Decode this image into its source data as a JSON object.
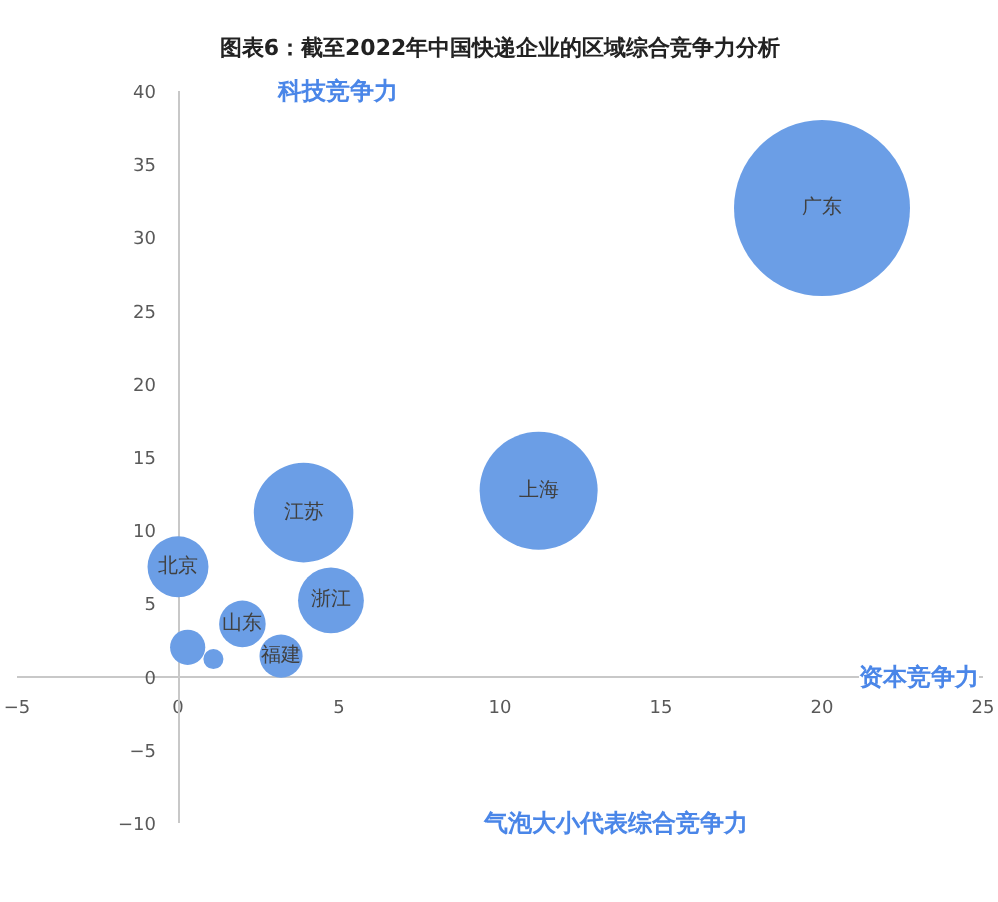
{
  "chart_data": {
    "type": "bubble",
    "title": "图表6：截至2022年中国快递企业的区域综合竞争力分析",
    "xlabel": "资本竞争力",
    "ylabel": "科技竞争力",
    "x": [
      20,
      11.2,
      3.9,
      0,
      4.75,
      2,
      3.2,
      0.3,
      1.1
    ],
    "series": [
      {
        "color": "#6b9ee6",
        "values": [
          32,
          12.7,
          11.2,
          7.5,
          5.2,
          3.6,
          1.4,
          2,
          1.2
        ],
        "sizes": [
          1,
          0.45,
          0.32,
          0.12,
          0.14,
          0.07,
          0.06,
          0.04,
          0.013
        ]
      }
    ],
    "xlim": [
      -5,
      25
    ],
    "ylim": [
      -10,
      40
    ],
    "xticks": [
      -5,
      0,
      5,
      10,
      15,
      20,
      25
    ],
    "yticks": [
      -10,
      -5,
      0,
      5,
      10,
      15,
      20,
      25,
      30,
      35,
      40
    ],
    "annotations": [
      {
        "text": "广东",
        "x": 20,
        "y": 32
      },
      {
        "text": "上海",
        "x": 11.2,
        "y": 12.7
      },
      {
        "text": "江苏",
        "x": 3.9,
        "y": 11.2
      },
      {
        "text": "北京",
        "x": 0,
        "y": 7.5
      },
      {
        "text": "浙江",
        "x": 4.75,
        "y": 5.2
      },
      {
        "text": "山东",
        "x": 2,
        "y": 3.6
      },
      {
        "text": "福建",
        "x": 3.2,
        "y": 1.4
      },
      "气泡大小代表综合竞争力"
    ]
  }
}
